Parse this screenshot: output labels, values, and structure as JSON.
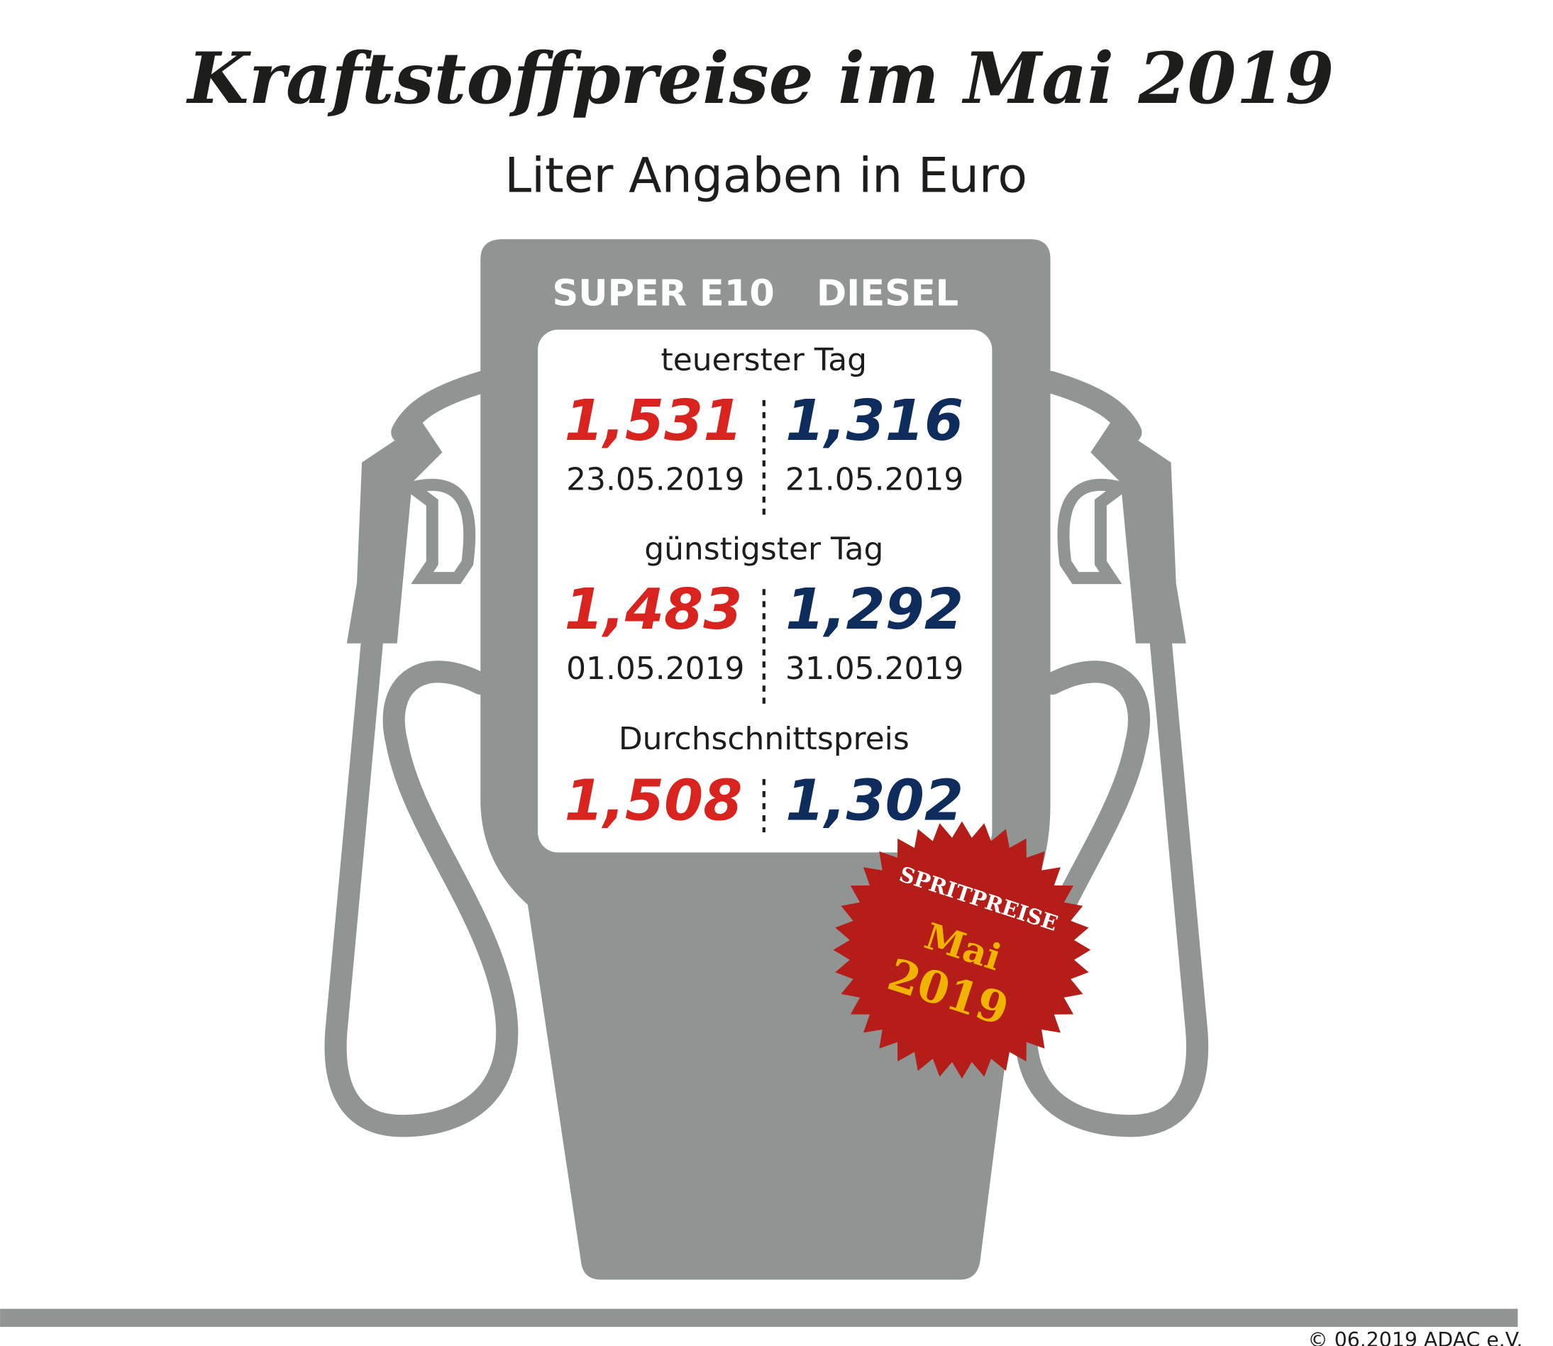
{
  "header": {
    "title": "Kraftstoffpreise im Mai 2019",
    "subtitle": "Liter Angaben in Euro"
  },
  "columns": [
    "SUPER E10",
    "DIESEL"
  ],
  "sections": [
    {
      "label": "teuerster Tag",
      "super": {
        "price": "1,531",
        "date": "23.05.2019"
      },
      "diesel": {
        "price": "1,316",
        "date": "21.05.2019"
      }
    },
    {
      "label": "günstigster Tag",
      "super": {
        "price": "1,483",
        "date": "01.05.2019"
      },
      "diesel": {
        "price": "1,292",
        "date": "31.05.2019"
      }
    },
    {
      "label": "Durchschnittspreis",
      "super": {
        "price": "1,508"
      },
      "diesel": {
        "price": "1,302"
      }
    }
  ],
  "badge": {
    "line1": "SPRITPREISE",
    "line2": "Mai",
    "line3": "2019"
  },
  "footer": "© 06.2019  ADAC e.V."
}
